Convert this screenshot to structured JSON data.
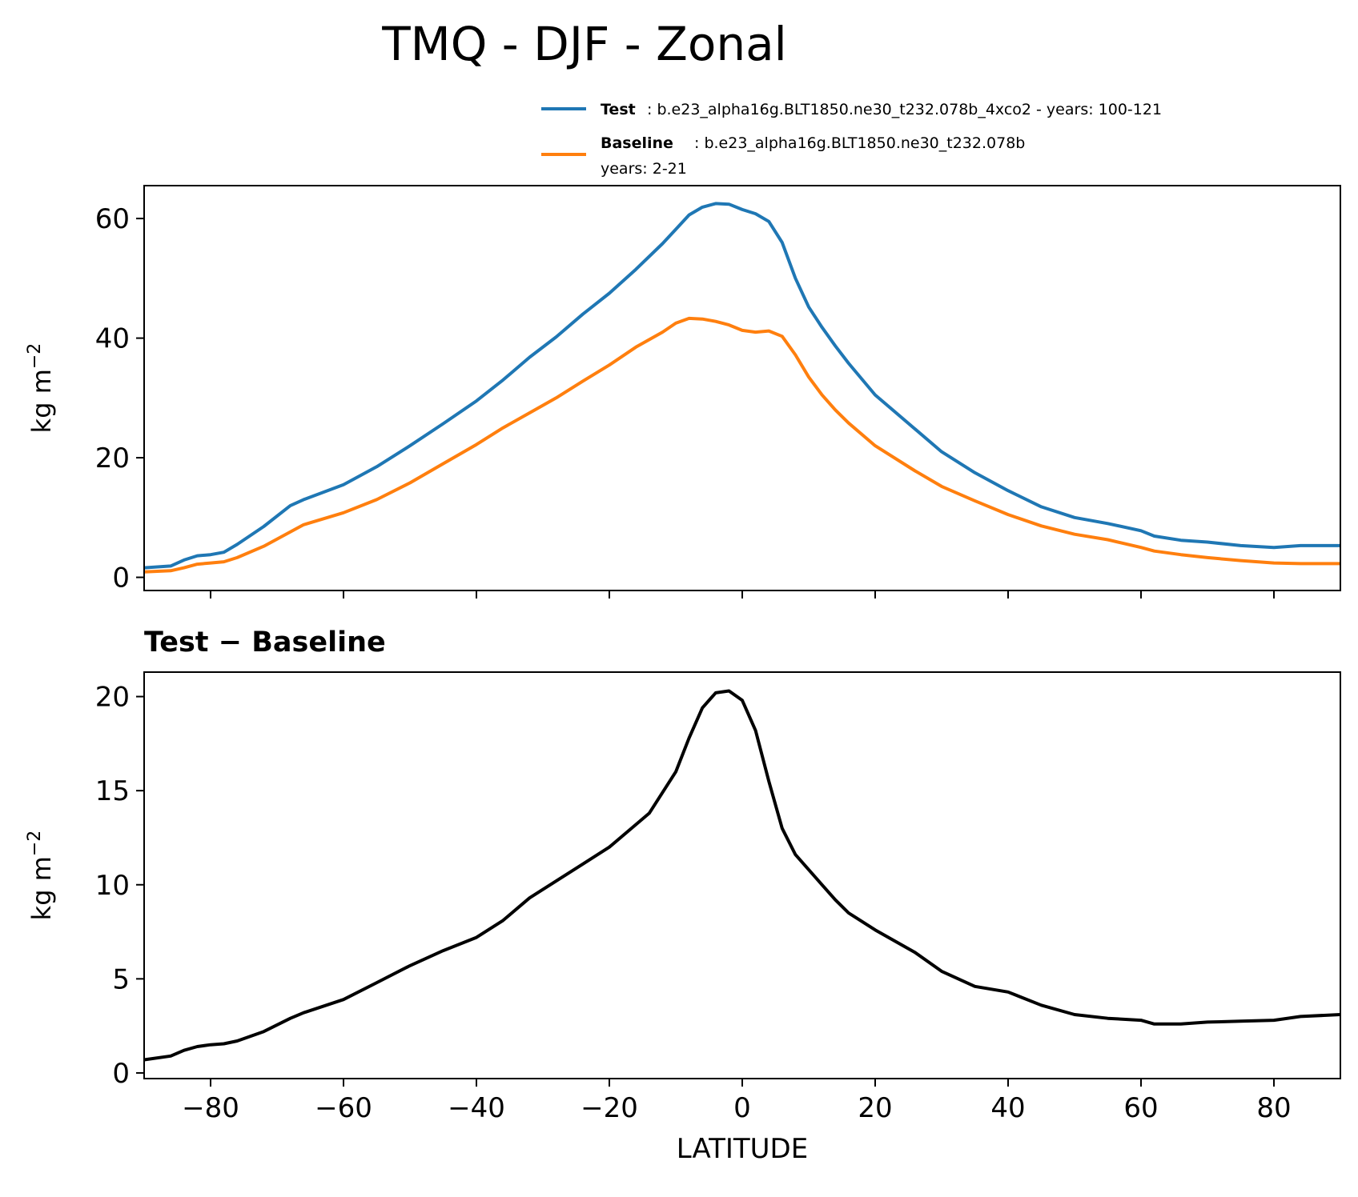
{
  "chart_data": [
    {
      "type": "line",
      "panel": "top",
      "title": "TMQ - DJF - Zonal",
      "ylabel": "kg m",
      "ylabel_superscript": "−2",
      "xlim": [
        -90,
        90
      ],
      "ylim": [
        -2.2,
        65.5
      ],
      "yticks": [
        0,
        20,
        40,
        60
      ],
      "xticks": [
        -80,
        -60,
        -40,
        -20,
        0,
        20,
        40,
        60,
        80
      ],
      "grid": false,
      "legend": {
        "placement": "top-right, above plot",
        "entries": [
          {
            "bold": "Test",
            "text": ": b.e23_alpha16g.BLT1850.ne30_t232.078b_4xco2 - years: 100-121",
            "text2": "",
            "color": "#1f77b4"
          },
          {
            "bold": "Baseline",
            "text": ": b.e23_alpha16g.BLT1850.ne30_t232.078b",
            "text2": "years: 2-21",
            "color": "#ff7f0e"
          }
        ]
      },
      "x": [
        -90,
        -86,
        -84,
        -82,
        -80,
        -78,
        -76,
        -72,
        -68,
        -66,
        -60,
        -55,
        -50,
        -45,
        -40,
        -36,
        -32,
        -28,
        -24,
        -20,
        -16,
        -12,
        -10,
        -8,
        -6,
        -4,
        -2,
        0,
        2,
        4,
        6,
        8,
        10,
        12,
        14,
        16,
        20,
        26,
        30,
        35,
        40,
        45,
        50,
        55,
        60,
        62,
        66,
        70,
        75,
        80,
        84,
        90
      ],
      "series": [
        {
          "name": "Test",
          "color": "#1f77b4",
          "values": [
            1.6,
            1.9,
            2.9,
            3.6,
            3.8,
            4.2,
            5.5,
            8.5,
            12.0,
            13.0,
            15.5,
            18.5,
            22.0,
            25.7,
            29.5,
            33.0,
            36.8,
            40.2,
            44.0,
            47.5,
            51.5,
            55.8,
            58.2,
            60.6,
            61.9,
            62.5,
            62.4,
            61.5,
            60.8,
            59.5,
            56.0,
            50.0,
            45.2,
            41.8,
            38.7,
            35.8,
            30.5,
            24.8,
            21.0,
            17.5,
            14.5,
            11.8,
            10.0,
            9.0,
            7.8,
            6.9,
            6.2,
            5.9,
            5.3,
            5.0,
            5.3,
            5.3
          ]
        },
        {
          "name": "Baseline",
          "color": "#ff7f0e",
          "values": [
            0.9,
            1.1,
            1.6,
            2.2,
            2.4,
            2.6,
            3.3,
            5.2,
            7.6,
            8.8,
            10.8,
            13.0,
            15.8,
            19.0,
            22.2,
            25.0,
            27.5,
            30.0,
            32.8,
            35.5,
            38.5,
            41.0,
            42.5,
            43.3,
            43.2,
            42.8,
            42.2,
            41.3,
            41.0,
            41.2,
            40.3,
            37.2,
            33.5,
            30.5,
            28.0,
            25.8,
            22.0,
            17.8,
            15.2,
            12.8,
            10.5,
            8.6,
            7.2,
            6.3,
            5.0,
            4.4,
            3.8,
            3.3,
            2.8,
            2.4,
            2.3,
            2.3
          ]
        }
      ]
    },
    {
      "type": "line",
      "panel": "bottom",
      "subtitle": "Test − Baseline",
      "ylabel": "kg m",
      "ylabel_superscript": "−2",
      "xlabel": "LATITUDE",
      "xlim": [
        -90,
        90
      ],
      "ylim": [
        -0.3,
        21.3
      ],
      "yticks": [
        0,
        5,
        10,
        15,
        20
      ],
      "xticks": [
        -80,
        -60,
        -40,
        -20,
        0,
        20,
        40,
        60,
        80
      ],
      "xticklabels": [
        "−80",
        "−60",
        "−40",
        "−20",
        "0",
        "20",
        "40",
        "60",
        "80"
      ],
      "grid": false,
      "x": [
        -90,
        -86,
        -84,
        -82,
        -80,
        -78,
        -76,
        -72,
        -68,
        -66,
        -60,
        -55,
        -50,
        -45,
        -40,
        -36,
        -32,
        -28,
        -24,
        -20,
        -16,
        -14,
        -10,
        -8,
        -6,
        -4,
        -2,
        0,
        2,
        4,
        6,
        8,
        10,
        12,
        14,
        16,
        20,
        26,
        30,
        35,
        40,
        45,
        50,
        55,
        60,
        62,
        66,
        70,
        75,
        80,
        84,
        90
      ],
      "series": [
        {
          "name": "Test − Baseline",
          "color": "#000000",
          "values": [
            0.7,
            0.9,
            1.2,
            1.4,
            1.5,
            1.55,
            1.7,
            2.2,
            2.9,
            3.2,
            3.9,
            4.8,
            5.7,
            6.5,
            7.2,
            8.1,
            9.3,
            10.2,
            11.1,
            12.0,
            13.2,
            13.8,
            16.0,
            17.8,
            19.4,
            20.2,
            20.3,
            19.8,
            18.2,
            15.5,
            13.0,
            11.6,
            10.8,
            10.0,
            9.2,
            8.5,
            7.6,
            6.4,
            5.4,
            4.6,
            4.3,
            3.6,
            3.1,
            2.9,
            2.8,
            2.6,
            2.6,
            2.7,
            2.75,
            2.8,
            3.0,
            3.1
          ]
        }
      ]
    }
  ]
}
